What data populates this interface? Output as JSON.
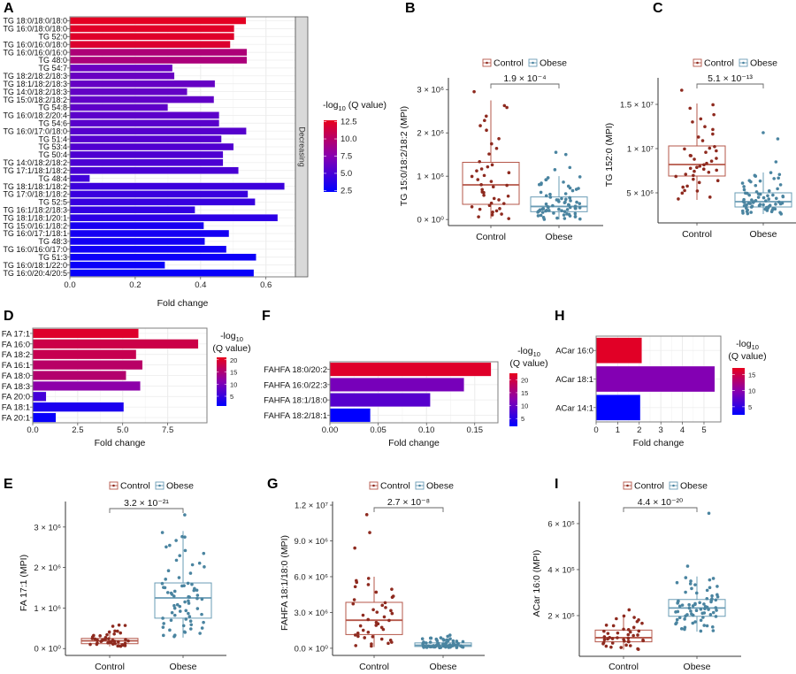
{
  "colors": {
    "low": "#0000FF",
    "mid": "#8800B0",
    "high": "#E8001C",
    "control_point": "#8E2A1F",
    "control_box": "#B5574A",
    "obese_point": "#4A84A0",
    "obese_box": "#6A9CB5",
    "grid": "#EBEBEB",
    "strip": "#D9D9D9"
  },
  "legend_groups": [
    "Control",
    "Obese"
  ],
  "colorbar_title": {
    "prefix": "-log",
    "sub": "10",
    "suffix": "(Q value)"
  },
  "chart_data": [
    {
      "panel": "A",
      "type": "bar",
      "orientation": "horizontal",
      "xlabel": "Fold change",
      "ylabel": "",
      "xlim": [
        0,
        0.69
      ],
      "xticks": [
        0,
        0.2,
        0.4,
        0.6
      ],
      "xtick_labels": [
        "0.0",
        "0.2",
        "0.4",
        "0.6"
      ],
      "facet_label": "Decreasing",
      "grid": true,
      "colorbar": {
        "ticks": [
          2.5,
          5.0,
          7.5,
          10.0,
          12.5
        ],
        "tick_labels": [
          "2.5",
          "5.0",
          "7.5",
          "10.0",
          "12.5"
        ]
      },
      "categories": [
        "TG 18:0/18:0/18:0",
        "TG 16:0/18:0/18:0",
        "TG 52:0",
        "TG 16:0/16:0/18:0",
        "TG 16:0/16:0/16:0",
        "TG 48:0",
        "TG 54:7",
        "TG 18:2/18:2/18:3",
        "TG 18:1/18:2/18:3",
        "TG 14:0/18:2/18:3",
        "TG 15:0/18:2/18:2",
        "TG 54:8",
        "TG 16:0/18:2/20:4",
        "TG 54:6",
        "TG 16:0/17:0/18:0",
        "TG 51:4",
        "TG 53:4",
        "TG 50:4",
        "TG 14:0/18:2/18:2",
        "TG 17:1/18:1/18:2",
        "TG 48:4",
        "TG 18:1/18:1/18:2",
        "TG 17:0/18:1/18:2",
        "TG 52:5",
        "TG 16:1/18:2/18:3",
        "TG 18:1/18:1/20:1",
        "TG 15:0/16:1/18:2",
        "TG 16:0/17:1/18:1",
        "TG 48:3",
        "TG 16:0/16:0/17:0",
        "TG 51:3",
        "TG 16:0/18:1/22:0",
        "TG 16:0/20:4/20:5"
      ],
      "values": [
        0.539,
        0.503,
        0.503,
        0.491,
        0.542,
        0.542,
        0.314,
        0.32,
        0.444,
        0.359,
        0.441,
        0.3,
        0.457,
        0.457,
        0.54,
        0.464,
        0.501,
        0.469,
        0.469,
        0.516,
        0.061,
        0.657,
        0.545,
        0.567,
        0.383,
        0.636,
        0.41,
        0.487,
        0.413,
        0.479,
        0.57,
        0.291,
        0.563
      ],
      "neg_log10_q": [
        12.5,
        12.3,
        12.2,
        12.0,
        9.5,
        9.4,
        6.4,
        6.3,
        6.2,
        6.1,
        6.0,
        5.9,
        5.8,
        5.7,
        5.6,
        5.5,
        5.4,
        5.3,
        5.2,
        5.1,
        4.8,
        4.6,
        4.5,
        4.4,
        4.2,
        4.0,
        3.2,
        3.1,
        3.0,
        2.9,
        2.8,
        2.7,
        2.6
      ]
    },
    {
      "panel": "B",
      "type": "box",
      "ylabel": "TG 15:0/18:2/18:2 (MPI)",
      "ylim": [
        -140000,
        3270000
      ],
      "yticks": [
        0,
        1000000,
        2000000,
        3000000
      ],
      "ytick_labels": [
        "0 × 10⁰",
        "1 × 10⁶",
        "2 × 10⁶",
        "3 × 10⁶"
      ],
      "p_value": "1.9 × 10⁻⁴",
      "groups": [
        {
          "name": "Control",
          "whisker_low": 20000,
          "q1": 350000,
          "median": 800000,
          "q3": 1320000,
          "whisker_high": 2750000,
          "outliers": [
            2950000
          ]
        },
        {
          "name": "Obese",
          "whisker_low": 0,
          "q1": 180000,
          "median": 300000,
          "q3": 520000,
          "whisker_high": 1000000,
          "outliers": [
            1550000,
            1500000,
            1200000,
            1150000
          ]
        }
      ]
    },
    {
      "panel": "C",
      "type": "box",
      "ylabel": "TG 152:0 (MPI)",
      "ylim": [
        1600000,
        18000000
      ],
      "yticks": [
        5000000,
        10000000,
        15000000
      ],
      "ytick_labels": [
        "5 × 10⁶",
        "1 × 10⁷",
        "1.5 × 10⁷"
      ],
      "p_value": "5.1 × 10⁻¹³",
      "groups": [
        {
          "name": "Control",
          "whisker_low": 4200000,
          "q1": 6900000,
          "median": 8200000,
          "q3": 10300000,
          "whisker_high": 15100000,
          "outliers": [
            16600000
          ]
        },
        {
          "name": "Obese",
          "whisker_low": 2600000,
          "q1": 3400000,
          "median": 4000000,
          "q3": 5000000,
          "whisker_high": 7300000,
          "outliers": [
            11800000,
            11100000,
            8500000
          ]
        }
      ]
    },
    {
      "panel": "D",
      "type": "bar",
      "orientation": "horizontal",
      "xlabel": "Fold change",
      "xlim": [
        0,
        9.68
      ],
      "xticks": [
        0,
        2.5,
        5,
        7.5
      ],
      "xtick_labels": [
        "0.0",
        "2.5",
        "5.0",
        "7.5"
      ],
      "grid": true,
      "colorbar": {
        "ticks": [
          5,
          10,
          15,
          20
        ],
        "tick_labels": [
          "5",
          "10",
          "15",
          "20"
        ]
      },
      "categories": [
        "FA 17:1",
        "FA 16:0",
        "FA 18:2",
        "FA 16:1",
        "FA 18:0",
        "FA 18:3",
        "FA 20:0",
        "FA 18:1",
        "FA 20:1"
      ],
      "values": [
        5.88,
        9.2,
        5.75,
        6.1,
        5.19,
        5.98,
        0.75,
        5.06,
        1.29
      ],
      "neg_log10_q": [
        20,
        18,
        17.5,
        16,
        15.5,
        11.5,
        6,
        3,
        1.5
      ]
    },
    {
      "panel": "F",
      "type": "bar",
      "orientation": "horizontal",
      "xlabel": "Fold change",
      "xlim": [
        0,
        0.174
      ],
      "xticks": [
        0,
        0.05,
        0.1,
        0.15
      ],
      "xtick_labels": [
        "0.00",
        "0.05",
        "0.10",
        "0.15"
      ],
      "grid": true,
      "colorbar": {
        "ticks": [
          5,
          10,
          15,
          20
        ],
        "tick_labels": [
          "5",
          "10",
          "15",
          "20"
        ]
      },
      "categories": [
        "FAHFA 18:0/20:2",
        "FAHFA 16:0/22:3",
        "FAHFA 18:1/18:0",
        "FAHFA 18:2/18:1"
      ],
      "values": [
        0.167,
        0.139,
        0.104,
        0.042
      ],
      "neg_log10_q": [
        21.5,
        11,
        8.5,
        2
      ]
    },
    {
      "panel": "H",
      "type": "bar",
      "orientation": "horizontal",
      "xlabel": "Fold change",
      "xlim": [
        0,
        5.78
      ],
      "xticks": [
        0,
        1,
        2,
        3,
        4,
        5
      ],
      "xtick_labels": [
        "0",
        "1",
        "2",
        "3",
        "4",
        "5"
      ],
      "grid": true,
      "colorbar": {
        "ticks": [
          5,
          10,
          15
        ],
        "tick_labels": [
          "5",
          "10",
          "15"
        ]
      },
      "categories": [
        "ACar 16:0",
        "ACar 18:1",
        "ACar 14:1"
      ],
      "values": [
        2.12,
        5.5,
        2.05
      ],
      "neg_log10_q": [
        16.5,
        9.5,
        2.5
      ]
    },
    {
      "panel": "E",
      "type": "box",
      "ylabel": "FA 17:1 (MPI)",
      "ylim": [
        -170000,
        3630000
      ],
      "yticks": [
        0,
        1000000,
        2000000,
        3000000
      ],
      "ytick_labels": [
        "0 × 10⁰",
        "1 × 10⁶",
        "2 × 10⁶",
        "3 × 10⁶"
      ],
      "p_value": "3.2 × 10⁻²¹",
      "groups": [
        {
          "name": "Control",
          "whisker_low": 50000,
          "q1": 120000,
          "median": 190000,
          "q3": 250000,
          "whisker_high": 450000,
          "outliers": [
            580000,
            570000,
            550000
          ]
        },
        {
          "name": "Obese",
          "whisker_low": 270000,
          "q1": 750000,
          "median": 1250000,
          "q3": 1620000,
          "whisker_high": 2900000,
          "outliers": [
            3300000
          ]
        }
      ]
    },
    {
      "panel": "G",
      "type": "box",
      "ylabel": "FAHFA 18:1/18:0 (MPI)",
      "ylim": [
        -600000,
        12300000
      ],
      "yticks": [
        0,
        3000000,
        6000000,
        9000000,
        12000000
      ],
      "ytick_labels": [
        "0.0 × 10⁰",
        "3.0 × 10⁶",
        "6.0 × 10⁶",
        "9.0 × 10⁶",
        "1.2 × 10⁷"
      ],
      "p_value": "2.7 × 10⁻⁸",
      "groups": [
        {
          "name": "Control",
          "whisker_low": 100000,
          "q1": 1150000,
          "median": 2350000,
          "q3": 3850000,
          "whisker_high": 6000000,
          "outliers": [
            11200000,
            9700000,
            8400000
          ]
        },
        {
          "name": "Obese",
          "whisker_low": 50000,
          "q1": 150000,
          "median": 250000,
          "q3": 450000,
          "whisker_high": 900000,
          "outliers": [
            1100000,
            1000000
          ]
        }
      ]
    },
    {
      "panel": "I",
      "type": "box",
      "ylabel": "ACar 16:0 (MPI)",
      "ylim": [
        23000,
        696000
      ],
      "yticks": [
        200000,
        400000,
        600000
      ],
      "ytick_labels": [
        "2 × 10⁵",
        "4 × 10⁵",
        "6 × 10⁵"
      ],
      "p_value": "4.4 × 10⁻²⁰",
      "groups": [
        {
          "name": "Control",
          "whisker_low": 52000,
          "q1": 86000,
          "median": 104000,
          "q3": 137000,
          "whisker_high": 200000,
          "outliers": [
            225000
          ]
        },
        {
          "name": "Obese",
          "whisker_low": 130000,
          "q1": 197000,
          "median": 233000,
          "q3": 270000,
          "whisker_high": 370000,
          "outliers": [
            645000,
            415000
          ]
        }
      ]
    }
  ]
}
